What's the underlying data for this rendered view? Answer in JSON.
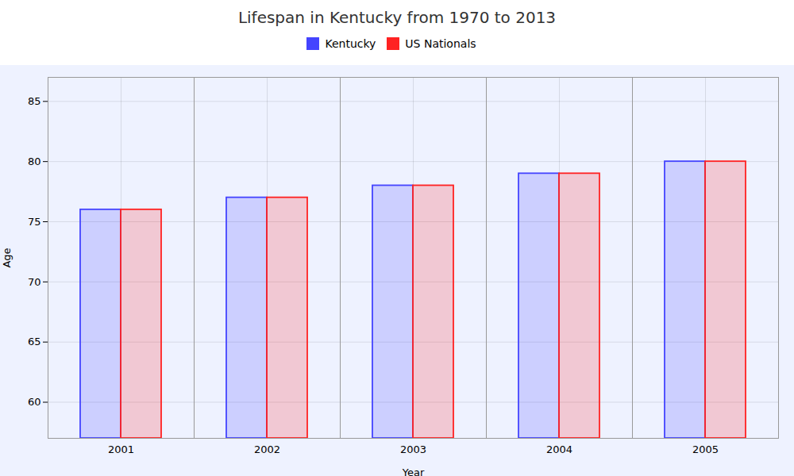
{
  "chart_data": {
    "type": "bar",
    "title": "Lifespan in Kentucky from 1970 to 2013",
    "xlabel": "Year",
    "ylabel": "Age",
    "categories": [
      "2001",
      "2002",
      "2003",
      "2004",
      "2005"
    ],
    "series": [
      {
        "name": "Kentucky",
        "color": "#4444ff",
        "values": [
          76,
          77,
          78,
          79,
          80
        ]
      },
      {
        "name": "US Nationals",
        "color": "#ff2222",
        "values": [
          76,
          77,
          78,
          79,
          80
        ]
      }
    ],
    "ylim": [
      57,
      87
    ],
    "yticks": [
      60,
      65,
      70,
      75,
      80,
      85
    ],
    "grid": true,
    "legend": "top"
  }
}
